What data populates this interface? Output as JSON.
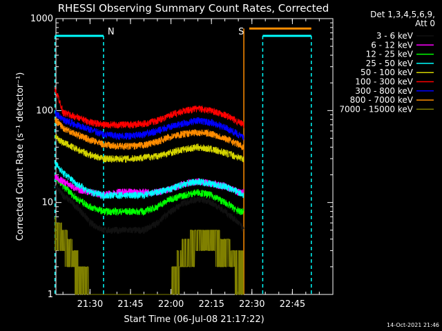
{
  "chart_data": {
    "type": "line",
    "title": "RHESSI Observing Summary Count Rates, Corrected",
    "xlabel": "Start Time (06-Jul-08 21:17:22)",
    "ylabel": "Corrected Count Rate (s⁻¹ detector⁻¹)",
    "y_scale": "log",
    "ylim": [
      1,
      1000
    ],
    "xlim": [
      "21:17:22",
      "23:00:00"
    ],
    "x_ticks": [
      "21:30",
      "21:45",
      "22:00",
      "22:15",
      "22:30",
      "22:45"
    ],
    "y_ticks": [
      "1",
      "10",
      "100",
      "1000"
    ],
    "legend_header": [
      "Det 1,3,4,5,6,9,",
      "Att 0"
    ],
    "legend_position": "right",
    "timestamp": "14-Oct-2021 21:46",
    "markers": [
      {
        "label": "N",
        "time": "21:35",
        "color": "#00ffff"
      },
      {
        "label": "S",
        "time": "22:27",
        "color": "#ff8c00"
      }
    ],
    "night_intervals": [
      [
        "21:17",
        "21:35"
      ],
      [
        "22:34",
        "22:52"
      ]
    ],
    "saa_interval": [
      "22:29",
      "22:52"
    ],
    "night_level": 650,
    "saa_level": 780,
    "x": [
      "21:17",
      "21:20",
      "21:25",
      "21:30",
      "21:35",
      "21:40",
      "21:45",
      "21:50",
      "21:55",
      "22:00",
      "22:05",
      "22:10",
      "22:15",
      "22:20",
      "22:25",
      "22:27"
    ],
    "series": [
      {
        "name": "3 - 6 keV",
        "color": "#000000",
        "values": [
          15,
          12,
          9,
          6,
          5,
          5,
          5,
          5,
          6,
          8,
          10,
          11,
          10,
          8,
          6,
          5
        ]
      },
      {
        "name": "6 - 12 keV",
        "color": "#ff00ff",
        "values": [
          19,
          17,
          14,
          13,
          12,
          13,
          13,
          13,
          13,
          14,
          16,
          17,
          16,
          15,
          13,
          13
        ]
      },
      {
        "name": "12 - 25 keV",
        "color": "#00ff00",
        "values": [
          19,
          15,
          11,
          9,
          8,
          8,
          8,
          8,
          9,
          11,
          12,
          13,
          12,
          10,
          8,
          8
        ]
      },
      {
        "name": "25 - 50 keV",
        "color": "#00ffff",
        "values": [
          27,
          21,
          16,
          13,
          12,
          12,
          12,
          12,
          13,
          14,
          16,
          17,
          16,
          15,
          13,
          12
        ]
      },
      {
        "name": "50 - 100 keV",
        "color": "#d4d400",
        "values": [
          52,
          45,
          38,
          33,
          30,
          30,
          30,
          31,
          32,
          35,
          38,
          40,
          38,
          35,
          31,
          30
        ]
      },
      {
        "name": "100 - 300 keV",
        "color": "#ff0000",
        "values": [
          170,
          95,
          85,
          75,
          70,
          70,
          70,
          72,
          78,
          90,
          100,
          105,
          100,
          90,
          75,
          70
        ]
      },
      {
        "name": "300 - 800 keV",
        "color": "#0000ff",
        "values": [
          95,
          80,
          70,
          62,
          55,
          53,
          53,
          55,
          60,
          67,
          73,
          78,
          74,
          65,
          55,
          50
        ]
      },
      {
        "name": "800 - 7000 keV",
        "color": "#ff8c00",
        "values": [
          80,
          65,
          55,
          48,
          43,
          41,
          41,
          42,
          46,
          52,
          56,
          58,
          56,
          50,
          43,
          40
        ]
      },
      {
        "name": "7000 - 15000 keV",
        "color": "#808000",
        "values": [
          5,
          4,
          2,
          1,
          1,
          1,
          1,
          1,
          1,
          1,
          3,
          4,
          4,
          3,
          2,
          2
        ]
      }
    ]
  }
}
